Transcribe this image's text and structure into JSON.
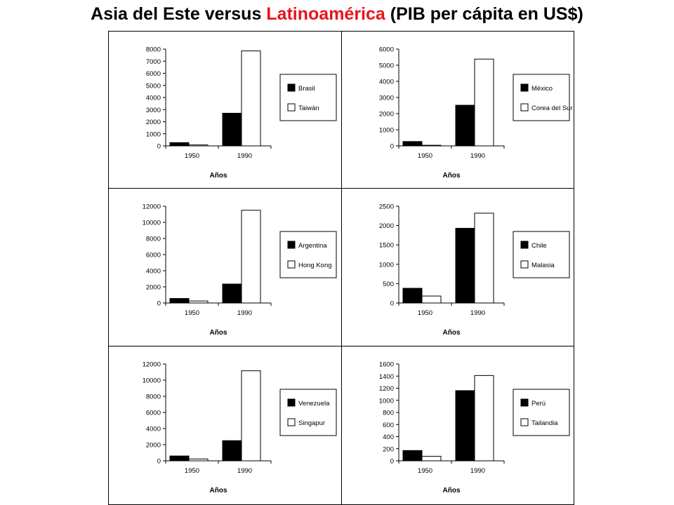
{
  "title": {
    "part1": "Asia del Este versus ",
    "highlight": "Latinoamérica",
    "part2": " (PIB per cápita en US$)",
    "highlight_color": "#e8141b"
  },
  "colors": {
    "latam": "#000000",
    "asia": "#ffffff",
    "title_highlight": "#e8141b"
  },
  "chart_data": [
    {
      "type": "bar",
      "categories": [
        "1950",
        "1990"
      ],
      "xlabel": "Años",
      "ylim": [
        0,
        8000
      ],
      "yticks": [
        0,
        1000,
        2000,
        3000,
        4000,
        5000,
        6000,
        7000,
        8000
      ],
      "legend_position": "right",
      "series": [
        {
          "name": "Brasil",
          "color": "#000000",
          "values": [
            270,
            2700
          ]
        },
        {
          "name": "Taiwán",
          "color": "#ffffff",
          "values": [
            80,
            7850
          ]
        }
      ]
    },
    {
      "type": "bar",
      "categories": [
        "1950",
        "1990"
      ],
      "xlabel": "Años",
      "ylim": [
        0,
        6000
      ],
      "yticks": [
        0,
        1000,
        2000,
        3000,
        4000,
        5000,
        6000
      ],
      "legend_position": "right",
      "series": [
        {
          "name": "México",
          "color": "#000000",
          "values": [
            270,
            2520
          ]
        },
        {
          "name": "Corea del Sur",
          "color": "#ffffff",
          "values": [
            40,
            5380
          ]
        }
      ]
    },
    {
      "type": "bar",
      "categories": [
        "1950",
        "1990"
      ],
      "xlabel": "Años",
      "ylim": [
        0,
        12000
      ],
      "yticks": [
        0,
        2000,
        4000,
        6000,
        8000,
        10000,
        12000
      ],
      "legend_position": "right",
      "series": [
        {
          "name": "Argentina",
          "color": "#000000",
          "values": [
            560,
            2350
          ]
        },
        {
          "name": "Hong Kong",
          "color": "#ffffff",
          "values": [
            250,
            11500
          ]
        }
      ]
    },
    {
      "type": "bar",
      "categories": [
        "1950",
        "1990"
      ],
      "xlabel": "Años",
      "ylim": [
        0,
        2500
      ],
      "yticks": [
        0,
        500,
        1000,
        1500,
        2000,
        2500
      ],
      "legend_position": "right",
      "series": [
        {
          "name": "Chile",
          "color": "#000000",
          "values": [
            380,
            1930
          ]
        },
        {
          "name": "Malasia",
          "color": "#ffffff",
          "values": [
            180,
            2320
          ]
        }
      ]
    },
    {
      "type": "bar",
      "categories": [
        "1950",
        "1990"
      ],
      "xlabel": "Años",
      "ylim": [
        0,
        12000
      ],
      "yticks": [
        0,
        2000,
        4000,
        6000,
        8000,
        10000,
        12000
      ],
      "legend_position": "right",
      "series": [
        {
          "name": "Venezuela",
          "color": "#000000",
          "values": [
            600,
            2500
          ]
        },
        {
          "name": "Singapur",
          "color": "#ffffff",
          "values": [
            230,
            11160
          ]
        }
      ]
    },
    {
      "type": "bar",
      "categories": [
        "1950",
        "1990"
      ],
      "xlabel": "Años",
      "ylim": [
        0,
        1600
      ],
      "yticks": [
        0,
        200,
        400,
        600,
        800,
        1000,
        1200,
        1400,
        1600
      ],
      "legend_position": "right",
      "series": [
        {
          "name": "Perú",
          "color": "#000000",
          "values": [
            170,
            1160
          ]
        },
        {
          "name": "Tailandia",
          "color": "#ffffff",
          "values": [
            75,
            1410
          ]
        }
      ]
    }
  ]
}
